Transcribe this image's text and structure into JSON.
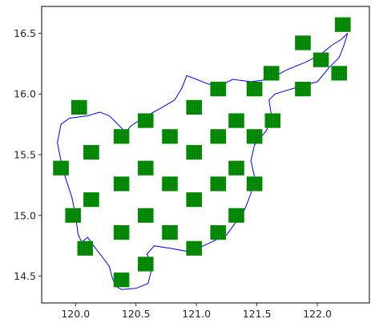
{
  "chart_data": {
    "type": "map",
    "title": "",
    "xlabel": "",
    "ylabel": "",
    "xlim": [
      119.72,
      122.43
    ],
    "ylim": [
      14.28,
      16.72
    ],
    "xticks": [
      120.0,
      120.5,
      121.0,
      121.5,
      122.0
    ],
    "xtick_labels": [
      "120.0",
      "120.5",
      "121.0",
      "121.5",
      "122.0"
    ],
    "yticks": [
      14.5,
      15.0,
      15.5,
      16.0,
      16.5
    ],
    "ytick_labels": [
      "14.5",
      "15.0",
      "15.5",
      "16.0",
      "16.5"
    ],
    "grid": false,
    "colors": {
      "outline": "#0000ff",
      "cell_fill": "#008000",
      "cell_dot": "#00aa00",
      "axes": "#000000"
    },
    "cell_size": {
      "width": 0.13,
      "height": 0.12
    },
    "cells": [
      {
        "x": 122.21,
        "y": 16.57
      },
      {
        "x": 121.88,
        "y": 16.42
      },
      {
        "x": 122.03,
        "y": 16.28
      },
      {
        "x": 121.62,
        "y": 16.17
      },
      {
        "x": 122.18,
        "y": 16.17
      },
      {
        "x": 121.18,
        "y": 16.04
      },
      {
        "x": 121.48,
        "y": 16.04
      },
      {
        "x": 121.88,
        "y": 16.04
      },
      {
        "x": 120.03,
        "y": 15.89
      },
      {
        "x": 120.98,
        "y": 15.89
      },
      {
        "x": 120.58,
        "y": 15.78
      },
      {
        "x": 121.33,
        "y": 15.78
      },
      {
        "x": 121.63,
        "y": 15.78
      },
      {
        "x": 120.38,
        "y": 15.65
      },
      {
        "x": 120.78,
        "y": 15.65
      },
      {
        "x": 121.18,
        "y": 15.65
      },
      {
        "x": 121.48,
        "y": 15.65
      },
      {
        "x": 120.13,
        "y": 15.52
      },
      {
        "x": 120.98,
        "y": 15.52
      },
      {
        "x": 119.88,
        "y": 15.39
      },
      {
        "x": 120.58,
        "y": 15.39
      },
      {
        "x": 121.33,
        "y": 15.39
      },
      {
        "x": 120.38,
        "y": 15.26
      },
      {
        "x": 120.78,
        "y": 15.26
      },
      {
        "x": 121.18,
        "y": 15.26
      },
      {
        "x": 121.48,
        "y": 15.26
      },
      {
        "x": 120.13,
        "y": 15.13
      },
      {
        "x": 120.98,
        "y": 15.13
      },
      {
        "x": 119.98,
        "y": 15.0
      },
      {
        "x": 120.58,
        "y": 15.0
      },
      {
        "x": 121.33,
        "y": 15.0
      },
      {
        "x": 120.38,
        "y": 14.86
      },
      {
        "x": 120.78,
        "y": 14.86
      },
      {
        "x": 121.18,
        "y": 14.86
      },
      {
        "x": 120.08,
        "y": 14.73
      },
      {
        "x": 120.98,
        "y": 14.73
      },
      {
        "x": 120.58,
        "y": 14.6
      },
      {
        "x": 120.38,
        "y": 14.47
      }
    ],
    "outline": [
      [
        120.33,
        14.42
      ],
      [
        120.38,
        14.39
      ],
      [
        120.5,
        14.4
      ],
      [
        120.6,
        14.44
      ],
      [
        120.62,
        14.52
      ],
      [
        120.64,
        14.6
      ],
      [
        120.59,
        14.68
      ],
      [
        120.65,
        14.75
      ],
      [
        120.78,
        14.73
      ],
      [
        120.95,
        14.7
      ],
      [
        121.1,
        14.77
      ],
      [
        121.25,
        14.84
      ],
      [
        121.33,
        14.95
      ],
      [
        121.4,
        15.05
      ],
      [
        121.45,
        15.18
      ],
      [
        121.48,
        15.32
      ],
      [
        121.45,
        15.45
      ],
      [
        121.48,
        15.58
      ],
      [
        121.58,
        15.7
      ],
      [
        121.62,
        15.82
      ],
      [
        121.6,
        15.95
      ],
      [
        121.65,
        16.0
      ],
      [
        121.85,
        16.06
      ],
      [
        122.0,
        16.1
      ],
      [
        122.1,
        16.22
      ],
      [
        122.18,
        16.3
      ],
      [
        122.22,
        16.4
      ],
      [
        122.25,
        16.5
      ],
      [
        122.2,
        16.45
      ],
      [
        122.12,
        16.4
      ],
      [
        122.02,
        16.32
      ],
      [
        121.9,
        16.26
      ],
      [
        121.75,
        16.2
      ],
      [
        121.6,
        16.12
      ],
      [
        121.45,
        16.1
      ],
      [
        121.3,
        16.12
      ],
      [
        121.22,
        16.08
      ],
      [
        121.1,
        16.08
      ],
      [
        121.0,
        16.12
      ],
      [
        120.92,
        16.15
      ],
      [
        120.88,
        16.05
      ],
      [
        120.82,
        15.95
      ],
      [
        120.7,
        15.88
      ],
      [
        120.55,
        15.8
      ],
      [
        120.45,
        15.73
      ],
      [
        120.42,
        15.68
      ],
      [
        120.35,
        15.75
      ],
      [
        120.28,
        15.82
      ],
      [
        120.2,
        15.85
      ],
      [
        120.1,
        15.82
      ],
      [
        119.95,
        15.8
      ],
      [
        119.88,
        15.75
      ],
      [
        119.85,
        15.6
      ],
      [
        119.88,
        15.45
      ],
      [
        119.92,
        15.3
      ],
      [
        119.97,
        15.15
      ],
      [
        120.0,
        15.0
      ],
      [
        120.02,
        14.85
      ],
      [
        120.05,
        14.78
      ],
      [
        120.1,
        14.82
      ],
      [
        120.15,
        14.75
      ],
      [
        120.22,
        14.66
      ],
      [
        120.28,
        14.58
      ],
      [
        120.3,
        14.5
      ],
      [
        120.33,
        14.42
      ]
    ]
  }
}
